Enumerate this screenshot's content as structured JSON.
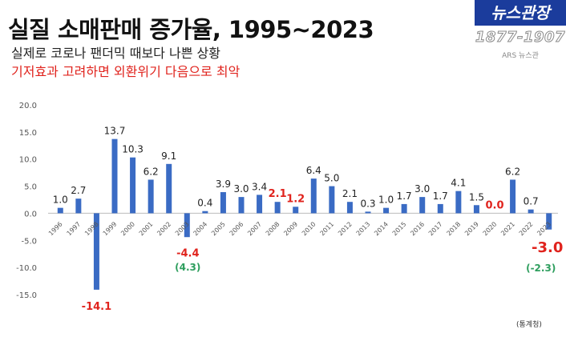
{
  "header": {
    "title": "실질 소매판매 증가율, 1995~2023",
    "subtitle1": "실제로 코로나 팬더믹 때보다 나쁜 상황",
    "subtitle2": "기저효과 고려하면 외환위기 다음으로 최악"
  },
  "logo": {
    "name": "뉴스관장",
    "years": "1877-1907",
    "sub": "ARS 뉴스관"
  },
  "source": "(통계청)",
  "colors": {
    "bar": "#3a6bc4",
    "highlight": "#e0231d",
    "note": "#2e9e5e",
    "axis": "#555555"
  },
  "chart_data": {
    "type": "bar",
    "categories": [
      "1996",
      "1997",
      "1998",
      "1999",
      "2000",
      "2001",
      "2002",
      "2003",
      "2004",
      "2005",
      "2006",
      "2007",
      "2008",
      "2009",
      "2010",
      "2011",
      "2012",
      "2013",
      "2014",
      "2015",
      "2016",
      "2017",
      "2018",
      "2019",
      "2020",
      "2021",
      "2022",
      "2023"
    ],
    "values": [
      1.0,
      2.7,
      -14.1,
      13.7,
      10.3,
      6.2,
      9.1,
      -4.4,
      0.4,
      3.9,
      3.0,
      3.4,
      2.1,
      1.2,
      6.4,
      5.0,
      2.1,
      0.3,
      1.0,
      1.7,
      3.0,
      1.7,
      4.1,
      1.5,
      0.0,
      6.2,
      0.7,
      -3.0
    ],
    "data_labels": [
      "1.0",
      "2.7",
      "-14.1",
      "13.7",
      "10.3",
      "6.2",
      "9.1",
      "-4.4",
      "0.4",
      "3.9",
      "3.0",
      "3.4",
      "2.1",
      "1.2",
      "6.4",
      "5.0",
      "2.1",
      "0.3",
      "1.0",
      "1.7",
      "3.0",
      "1.7",
      "4.1",
      "1.5",
      "0.0",
      "6.2",
      "0.7",
      "-3.0"
    ],
    "highlighted": [
      "1998",
      "2003",
      "2008",
      "2009",
      "2020",
      "2023"
    ],
    "annotations": [
      {
        "category": "2003",
        "text": "(4.3)"
      },
      {
        "category": "2023",
        "text": "(-2.3)"
      }
    ],
    "yticks": [
      "20.0",
      "15.0",
      "10.0",
      "5.0",
      "0.0",
      "-5.0",
      "-10.0",
      "-15.0"
    ],
    "ylim": [
      -17,
      20
    ],
    "grid": false,
    "legend": "none"
  }
}
